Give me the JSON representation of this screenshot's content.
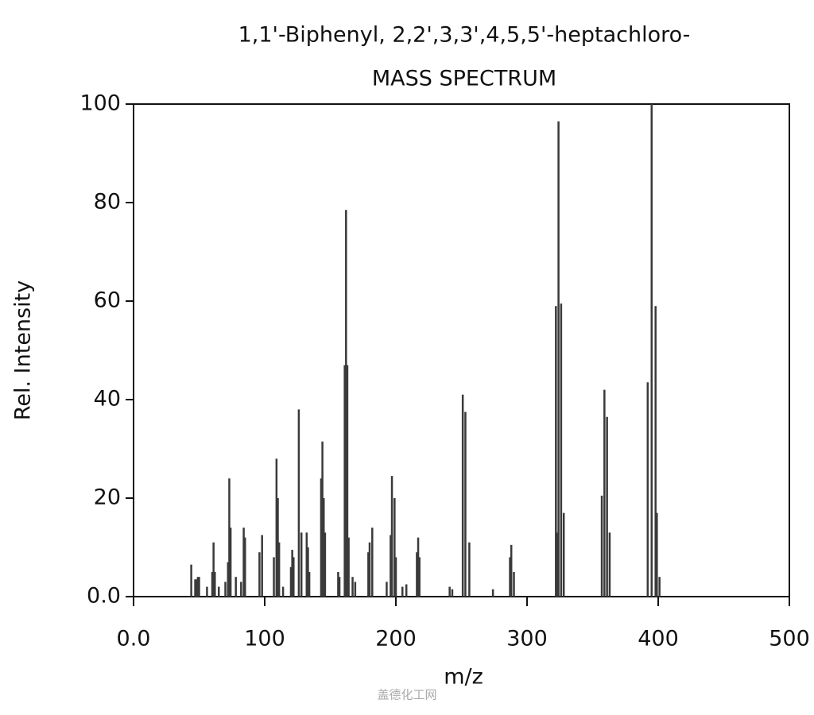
{
  "chart_data": {
    "type": "stick",
    "title": "1,1'-Biphenyl, 2,2',3,3',4,5,5'-heptachloro-",
    "subtitle": "MASS SPECTRUM",
    "x_label": "m/z",
    "y_label": "Rel. Intensity",
    "watermark": "盖德化工网",
    "color": "#3a3a3a",
    "xlim": [
      0,
      500
    ],
    "ylim": [
      0,
      100
    ],
    "xticks": [
      {
        "value": 0,
        "label": "0.0"
      },
      100,
      200,
      300,
      400,
      500
    ],
    "yticks": [
      {
        "value": 0,
        "label": "0.0"
      },
      20,
      40,
      60,
      80,
      100
    ],
    "x": [
      44,
      47,
      48,
      49,
      50,
      56,
      60,
      61,
      62,
      65,
      70,
      72,
      73,
      74,
      78,
      82,
      84,
      85,
      96,
      98,
      107,
      109,
      110,
      111,
      114,
      120,
      121,
      122,
      126,
      128,
      132,
      133,
      134,
      143,
      144,
      145,
      146,
      156,
      157,
      161,
      162,
      163,
      164,
      167,
      169,
      179,
      180,
      182,
      193,
      196,
      197,
      199,
      200,
      205,
      208,
      216,
      217,
      218,
      241,
      243,
      251,
      253,
      256,
      274,
      287,
      288,
      290,
      322,
      323,
      324,
      326,
      328,
      357,
      359,
      361,
      363,
      392,
      395,
      398,
      399,
      401
    ],
    "values": [
      6.5,
      3.5,
      3.5,
      4,
      4,
      2,
      5,
      11,
      5,
      2,
      3,
      7,
      24,
      14,
      4,
      3,
      14,
      12,
      9,
      12.5,
      8,
      28,
      20,
      11,
      2,
      6,
      9.5,
      8,
      38,
      13,
      13,
      10,
      5,
      24,
      31.5,
      20,
      13,
      5,
      4,
      47,
      78.5,
      47,
      12,
      4,
      3,
      9,
      11,
      14,
      3,
      12.5,
      24.5,
      20,
      8,
      2,
      2.5,
      9,
      12,
      8,
      2,
      1.5,
      41,
      37.5,
      11,
      1.5,
      8,
      10.5,
      5,
      59,
      13,
      96.5,
      59.5,
      17,
      20.5,
      42,
      36.5,
      13,
      43.5,
      100,
      59,
      17,
      4
    ]
  }
}
